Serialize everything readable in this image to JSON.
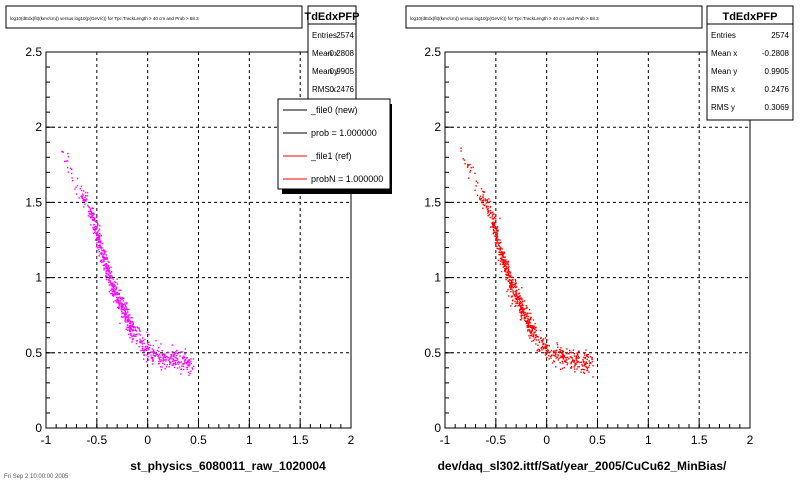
{
  "panels": [
    {
      "top_title": "log10(dEdx(fit)(keV/cm)) versus log10(p(GeV/c)) for Tpc.TrackLength > 40 cm and Prob > 68.3",
      "bottom_label": "st_physics_6080011_raw_1020004",
      "stats": {
        "name": "TdEdxPFP",
        "rows": [
          {
            "label": "Entries",
            "value": "2574"
          },
          {
            "label": "Mean x",
            "value": "-0.2808"
          },
          {
            "label": "Mean y",
            "value": "0.9905"
          },
          {
            "label": "RMS x",
            "value": "0.2476"
          }
        ]
      },
      "legend": [
        {
          "label": "_file0 (new)",
          "color": "#000000"
        },
        {
          "label": "prob = 1.000000",
          "color": "#000000"
        },
        {
          "label": "_file1 (ref)",
          "color": "#ff0000"
        },
        {
          "label": "probN = 1.000000",
          "color": "#ff0000"
        }
      ]
    },
    {
      "top_title": "log10(dEdx(fit)(keV/cm)) versus log10(p(GeV/c)) for Tpc.TrackLength > 40 cm and Prob > 68.3",
      "bottom_label": "dev/daq_sl302.ittf/Sat/year_2005/CuCu62_MinBias/",
      "stats": {
        "name": "TdEdxPFP",
        "rows": [
          {
            "label": "Entries",
            "value": "2574"
          },
          {
            "label": "Mean x",
            "value": "-0.2808"
          },
          {
            "label": "Mean y",
            "value": "0.9905"
          },
          {
            "label": "RMS x",
            "value": "0.2476"
          },
          {
            "label": "RMS y",
            "value": "0.3069"
          }
        ]
      }
    }
  ],
  "footer_text": "Fri Sep 2 10:00:00 2005",
  "chart_data": [
    {
      "type": "scatter",
      "title": "",
      "xlabel": "st_physics_6080011_raw_1020004",
      "ylabel": "",
      "xlim": [
        -1,
        2
      ],
      "ylim": [
        0,
        2.5
      ],
      "x_ticks": [
        "-1",
        "-0.5",
        "0",
        "0.5",
        "1",
        "1.5",
        "2"
      ],
      "y_ticks": [
        "0",
        "0.5",
        "1",
        "1.5",
        "2",
        "2.5"
      ],
      "grid": true,
      "legend_position": "top-right",
      "series": [
        {
          "name": "_file0 (new)",
          "color": "#ff00ff",
          "band": [
            {
              "x": -0.85,
              "y": 1.85
            },
            {
              "x": -0.75,
              "y": 1.7
            },
            {
              "x": -0.65,
              "y": 1.55
            },
            {
              "x": -0.55,
              "y": 1.42
            },
            {
              "x": -0.45,
              "y": 1.15
            },
            {
              "x": -0.35,
              "y": 0.95
            },
            {
              "x": -0.25,
              "y": 0.8
            },
            {
              "x": -0.15,
              "y": 0.65
            },
            {
              "x": -0.05,
              "y": 0.55
            },
            {
              "x": 0.05,
              "y": 0.5
            },
            {
              "x": 0.15,
              "y": 0.47
            },
            {
              "x": 0.25,
              "y": 0.45
            },
            {
              "x": 0.35,
              "y": 0.44
            },
            {
              "x": 0.45,
              "y": 0.43
            }
          ]
        }
      ]
    },
    {
      "type": "scatter",
      "title": "",
      "xlabel": "dev/daq_sl302.ittf/Sat/year_2005/CuCu62_MinBias/",
      "ylabel": "",
      "xlim": [
        -1,
        2
      ],
      "ylim": [
        0,
        2.5
      ],
      "x_ticks": [
        "-1",
        "-0.5",
        "0",
        "0.5",
        "1",
        "1.5",
        "2"
      ],
      "y_ticks": [
        "0",
        "0.5",
        "1",
        "1.5",
        "2",
        "2.5"
      ],
      "grid": true,
      "series": [
        {
          "name": "_file1 (ref)",
          "color": "#ff0000",
          "band": [
            {
              "x": -0.85,
              "y": 1.85
            },
            {
              "x": -0.75,
              "y": 1.7
            },
            {
              "x": -0.65,
              "y": 1.55
            },
            {
              "x": -0.55,
              "y": 1.42
            },
            {
              "x": -0.45,
              "y": 1.15
            },
            {
              "x": -0.35,
              "y": 0.95
            },
            {
              "x": -0.25,
              "y": 0.8
            },
            {
              "x": -0.15,
              "y": 0.65
            },
            {
              "x": -0.05,
              "y": 0.55
            },
            {
              "x": 0.05,
              "y": 0.5
            },
            {
              "x": 0.15,
              "y": 0.47
            },
            {
              "x": 0.25,
              "y": 0.45
            },
            {
              "x": 0.35,
              "y": 0.44
            },
            {
              "x": 0.45,
              "y": 0.43
            }
          ]
        }
      ]
    }
  ]
}
